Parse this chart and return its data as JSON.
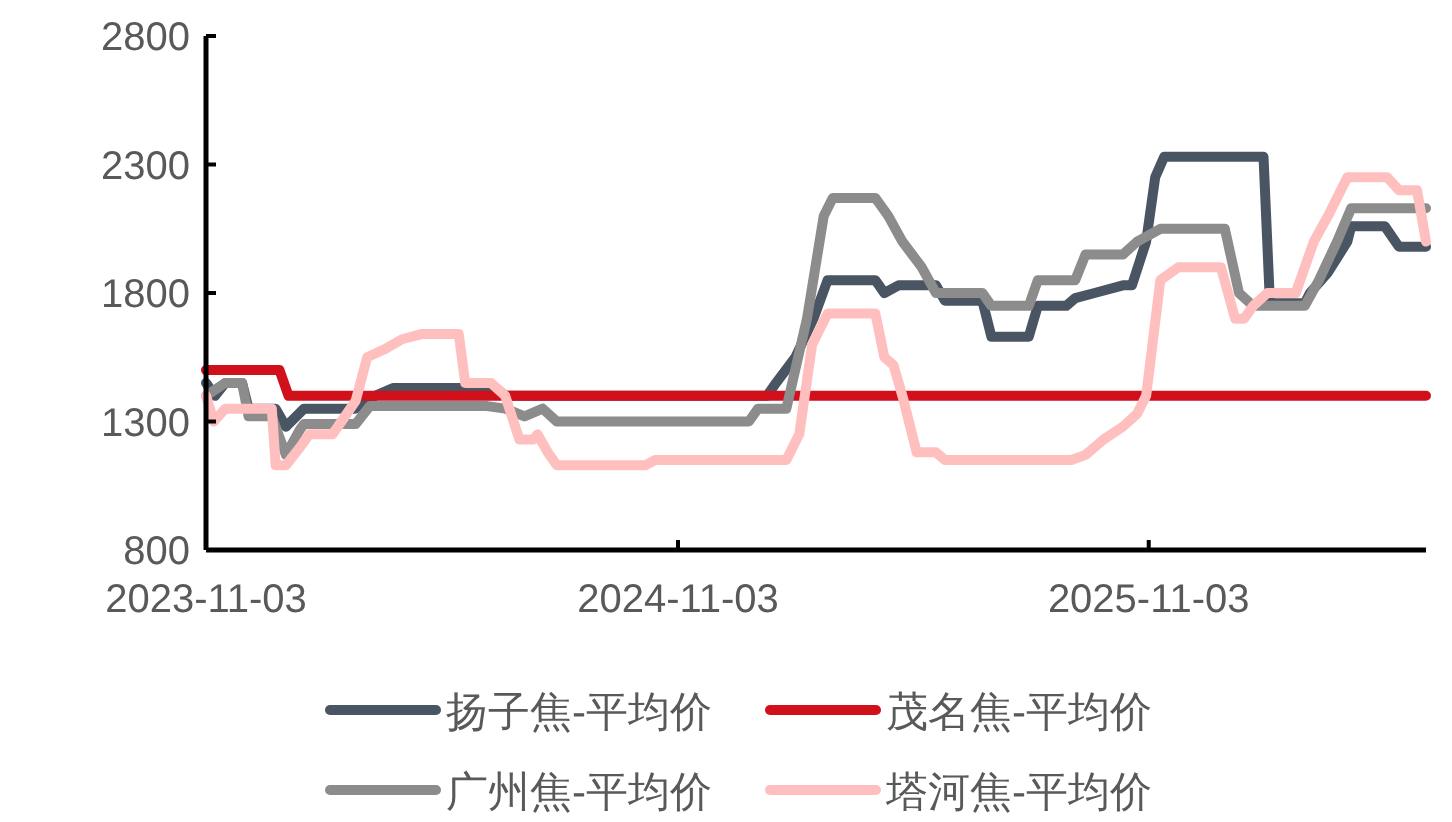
{
  "chart_data": {
    "type": "line",
    "xlim": [
      "2023-11-03",
      "2026-06-06"
    ],
    "xticks": [
      "2023-11-03",
      "2024-11-03",
      "2025-11-03"
    ],
    "ylim": [
      800,
      2800
    ],
    "yticks": [
      800,
      1300,
      1800,
      2300,
      2800
    ],
    "grid": false,
    "legend": "bottom",
    "line_style": "solid",
    "series": [
      {
        "name": "扬子焦-平均价",
        "color": "#4a5563",
        "x": [
          "2023-11-03",
          "2023-11-10",
          "2023-11-18",
          "2023-12-01",
          "2023-12-06",
          "2023-12-27",
          "2024-01-04",
          "2024-01-18",
          "2024-02-27",
          "2024-03-13",
          "2024-03-27",
          "2024-06-15",
          "2024-06-22",
          "2025-01-11",
          "2025-01-18",
          "2025-02-02",
          "2025-02-16",
          "2025-02-27",
          "2025-04-05",
          "2025-04-12",
          "2025-04-23",
          "2025-05-22",
          "2025-05-29",
          "2025-06-27",
          "2025-07-04",
          "2025-08-02",
          "2025-08-09",
          "2025-08-31",
          "2025-09-07",
          "2025-09-22",
          "2025-10-14",
          "2025-10-21",
          "2025-11-01",
          "2025-11-08",
          "2025-11-15",
          "2026-01-31",
          "2026-02-05",
          "2026-03-04",
          "2026-03-08",
          "2026-03-22",
          "2026-04-06",
          "2026-04-09",
          "2026-05-05",
          "2026-05-16",
          "2026-06-06"
        ],
        "values": [
          1450,
          1400,
          1450,
          1450,
          1350,
          1350,
          1280,
          1350,
          1350,
          1400,
          1430,
          1430,
          1400,
          1400,
          1450,
          1550,
          1700,
          1850,
          1850,
          1800,
          1830,
          1830,
          1770,
          1770,
          1630,
          1630,
          1750,
          1750,
          1780,
          1800,
          1830,
          1830,
          2000,
          2250,
          2330,
          2330,
          1760,
          1760,
          1800,
          1880,
          2000,
          2060,
          2060,
          1980,
          1980
        ]
      },
      {
        "name": "茂名焦-平均价",
        "color": "#d0101a",
        "x": [
          "2023-11-03",
          "2023-12-30",
          "2024-01-06",
          "2026-06-06"
        ],
        "values": [
          1500,
          1500,
          1400,
          1400
        ]
      },
      {
        "name": "广州焦-平均价",
        "color": "#8c8c8c",
        "x": [
          "2023-11-03",
          "2023-11-18",
          "2023-12-01",
          "2023-12-06",
          "2023-12-24",
          "2024-01-04",
          "2024-01-15",
          "2024-01-18",
          "2024-02-27",
          "2024-03-09",
          "2024-06-08",
          "2024-06-22",
          "2024-07-07",
          "2024-07-21",
          "2024-08-01",
          "2024-12-28",
          "2025-01-04",
          "2025-01-26",
          "2025-02-11",
          "2025-02-24",
          "2025-03-03",
          "2025-04-05",
          "2025-04-15",
          "2025-04-26",
          "2025-05-11",
          "2025-05-22",
          "2025-06-27",
          "2025-07-04",
          "2025-08-02",
          "2025-08-09",
          "2025-09-07",
          "2025-09-15",
          "2025-10-14",
          "2025-10-25",
          "2025-11-12",
          "2026-01-01",
          "2026-01-12",
          "2026-01-23",
          "2026-03-04",
          "2026-03-15",
          "2026-03-29",
          "2026-04-09",
          "2026-06-06"
        ],
        "values": [
          1400,
          1450,
          1450,
          1320,
          1320,
          1170,
          1270,
          1290,
          1290,
          1360,
          1360,
          1350,
          1320,
          1350,
          1300,
          1300,
          1350,
          1350,
          1700,
          2100,
          2170,
          2170,
          2100,
          2000,
          1900,
          1800,
          1800,
          1750,
          1750,
          1850,
          1850,
          1950,
          1950,
          2000,
          2050,
          2050,
          1800,
          1750,
          1750,
          1850,
          2000,
          2130,
          2130
        ]
      },
      {
        "name": "塔河焦-平均价",
        "color": "#ffbfbf",
        "x": [
          "2023-11-03",
          "2023-11-09",
          "2023-11-18",
          "2023-12-24",
          "2023-12-27",
          "2024-01-04",
          "2024-01-15",
          "2024-01-22",
          "2024-02-09",
          "2024-02-16",
          "2024-02-27",
          "2024-03-07",
          "2024-03-20",
          "2024-04-03",
          "2024-04-18",
          "2024-05-17",
          "2024-05-22",
          "2024-06-11",
          "2024-06-22",
          "2024-07-03",
          "2024-07-14",
          "2024-07-17",
          "2024-07-25",
          "2024-08-01",
          "2024-10-09",
          "2024-10-16",
          "2025-01-26",
          "2025-02-05",
          "2025-02-15",
          "2025-02-27",
          "2025-04-05",
          "2025-04-12",
          "2025-04-19",
          "2025-04-26",
          "2025-05-07",
          "2025-05-22",
          "2025-05-29",
          "2025-09-04",
          "2025-09-15",
          "2025-09-29",
          "2025-10-14",
          "2025-10-25",
          "2025-11-01",
          "2025-11-12",
          "2025-11-26",
          "2025-12-29",
          "2026-01-09",
          "2026-01-16",
          "2026-01-23",
          "2026-02-03",
          "2026-02-25",
          "2026-03-11",
          "2026-03-22",
          "2026-04-06",
          "2026-05-07",
          "2026-05-16",
          "2026-05-30",
          "2026-06-06"
        ],
        "values": [
          1400,
          1300,
          1350,
          1350,
          1130,
          1130,
          1200,
          1250,
          1250,
          1300,
          1380,
          1550,
          1580,
          1620,
          1640,
          1640,
          1450,
          1450,
          1400,
          1230,
          1230,
          1250,
          1180,
          1130,
          1130,
          1150,
          1150,
          1250,
          1600,
          1720,
          1720,
          1550,
          1520,
          1400,
          1180,
          1180,
          1150,
          1150,
          1170,
          1230,
          1280,
          1330,
          1400,
          1850,
          1900,
          1900,
          1700,
          1700,
          1750,
          1800,
          1800,
          2000,
          2100,
          2250,
          2250,
          2200,
          2200,
          2000
        ]
      }
    ]
  }
}
